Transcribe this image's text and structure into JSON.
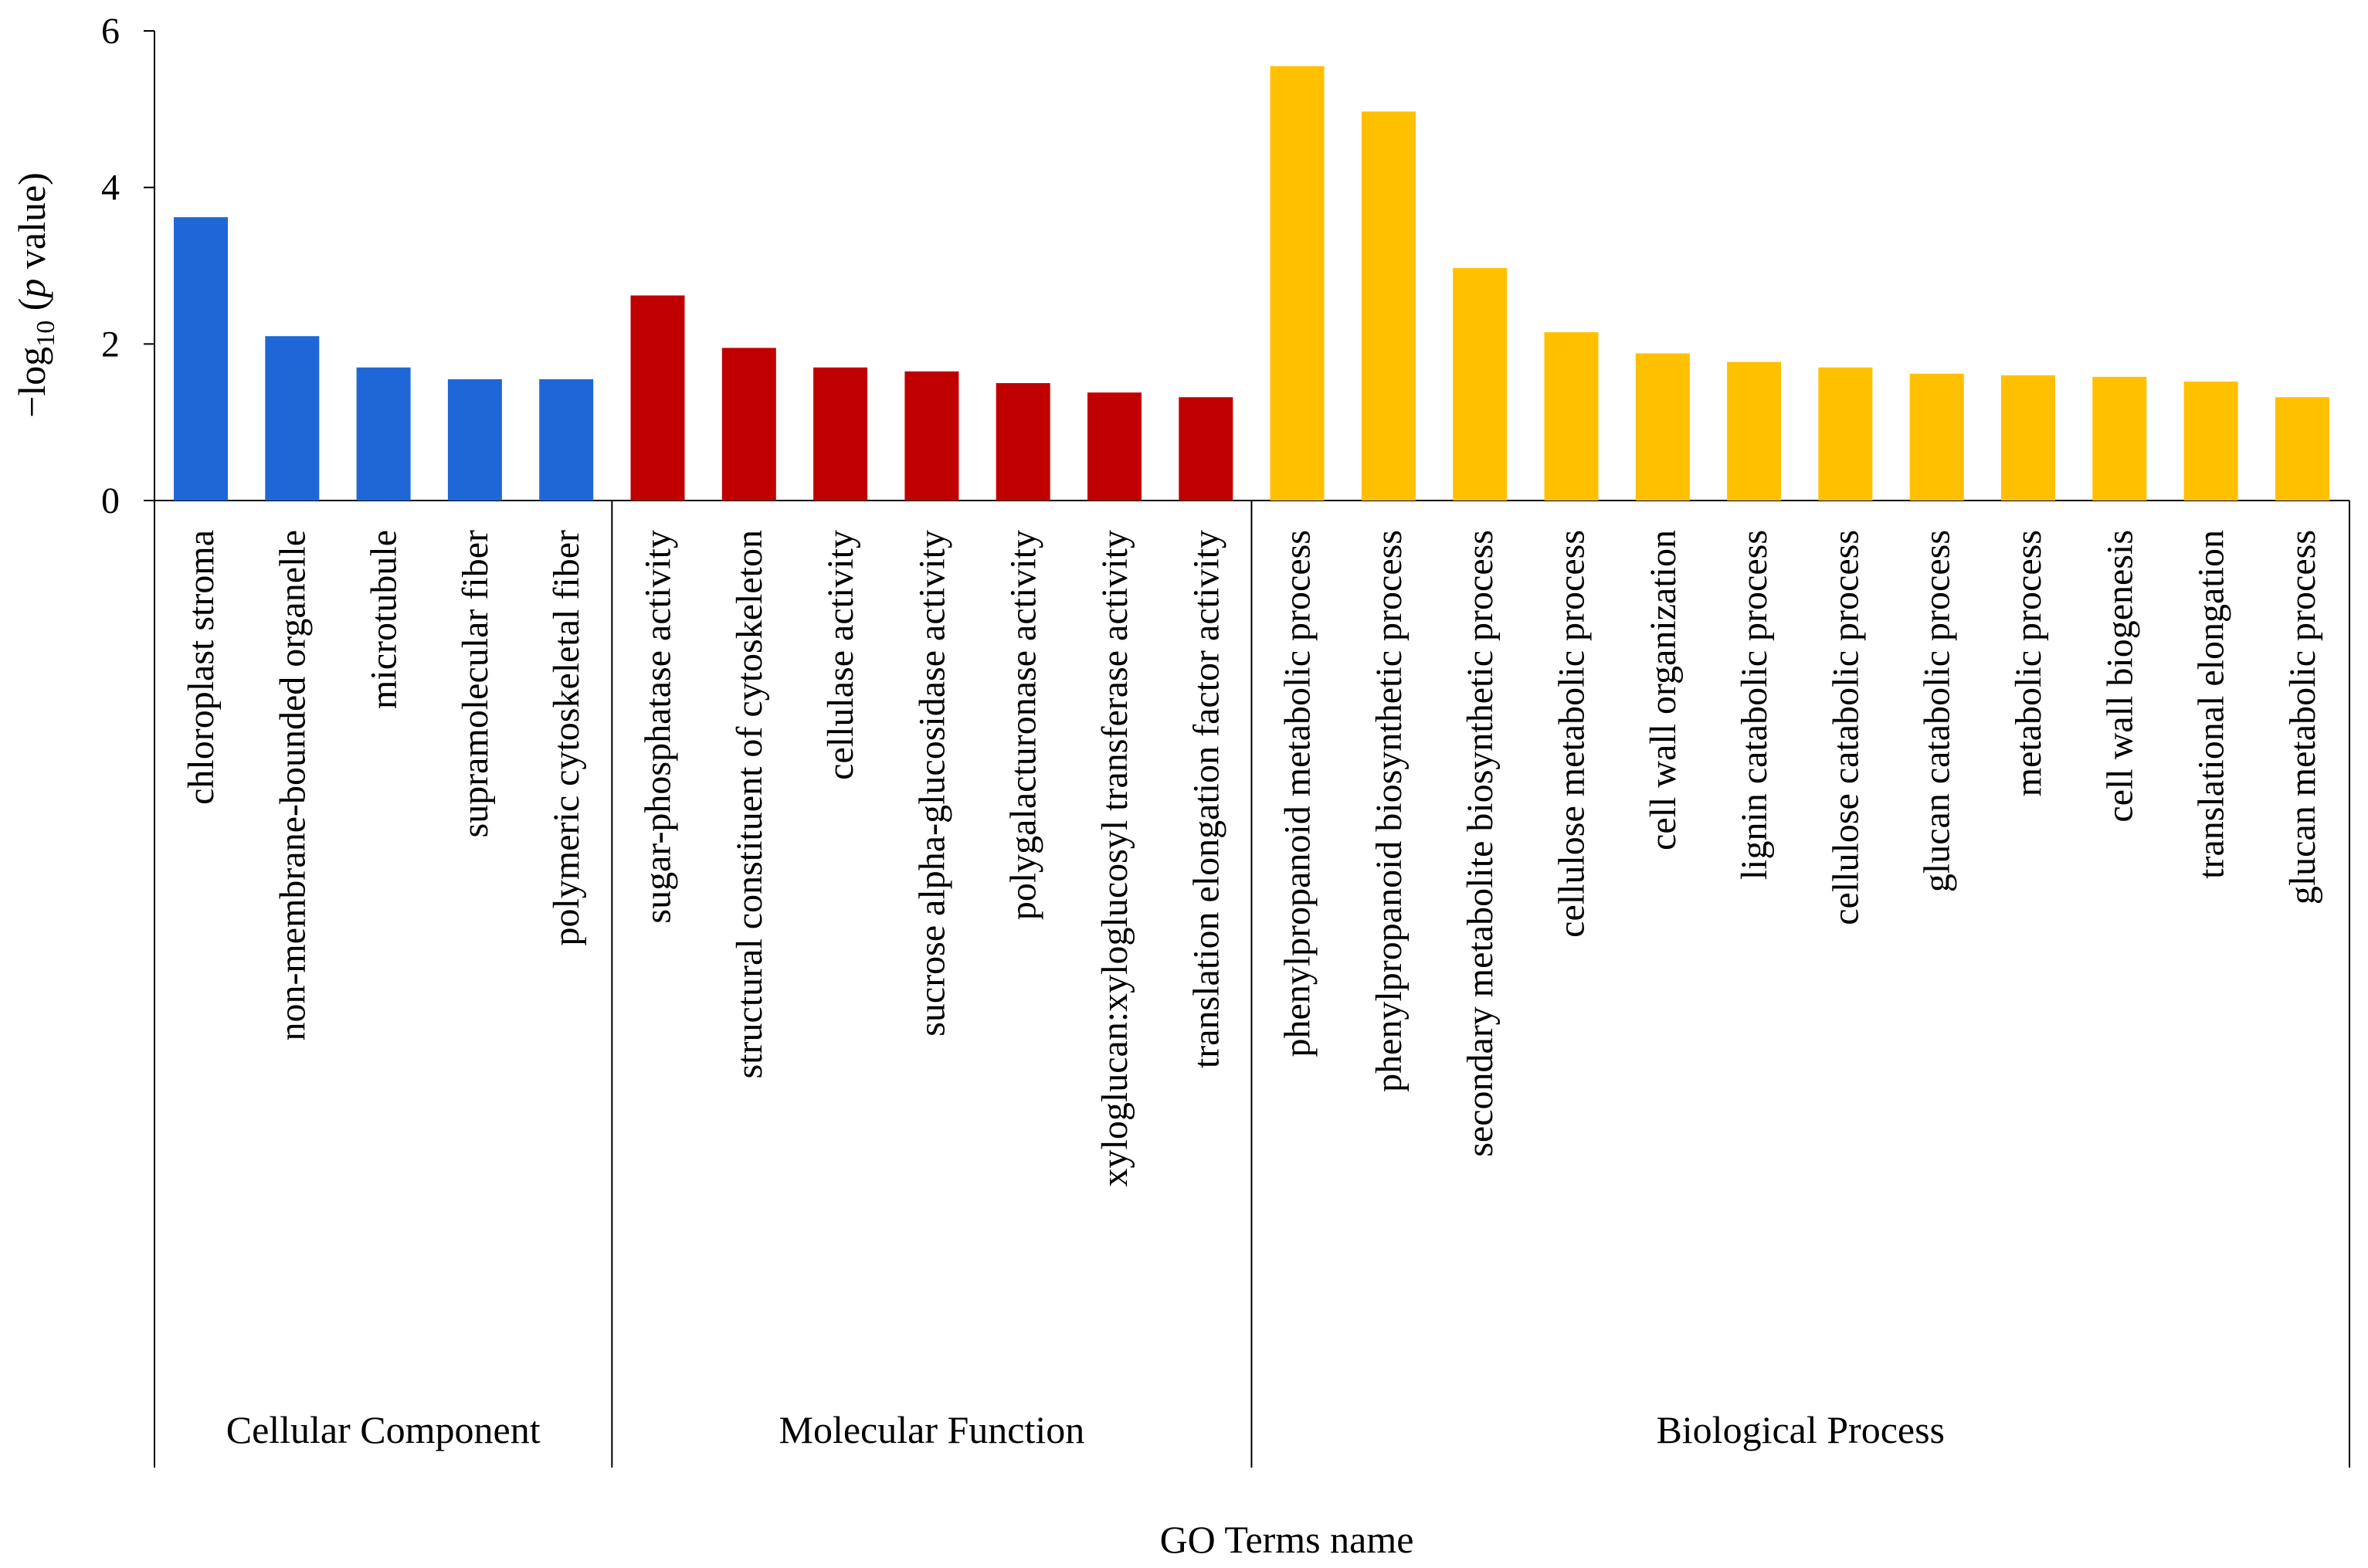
{
  "chart_data": {
    "type": "bar",
    "title": "",
    "xlabel": "GO Terms name",
    "ylabel_parts": [
      "−log",
      "10",
      " (",
      "p",
      " value)"
    ],
    "ylim": [
      0,
      6
    ],
    "yticks": [
      "0",
      "2",
      "4",
      "6"
    ],
    "groups": [
      {
        "name": "Cellular Component",
        "color": "#1f67d6",
        "start": 0,
        "count": 5
      },
      {
        "name": "Molecular Function",
        "color": "#c00000",
        "start": 5,
        "count": 7
      },
      {
        "name": "Biological Process",
        "color": "#ffc000",
        "start": 12,
        "count": 12
      }
    ],
    "categories": [
      "chloroplast stroma",
      "non-membrane-bounded organelle",
      "microtubule",
      "supramolecular fiber",
      "polymeric cytoskeletal fiber",
      "sugar-phosphatase activity",
      "structural constituent of cytoskeleton",
      "cellulase activity",
      "sucrose alpha-glucosidase activity",
      "polygalacturonase activity",
      "xyloglucan:xyloglucosyl transferase activity",
      "translation elongation factor activity",
      "phenylpropanoid metabolic process",
      "phenylpropanoid biosynthetic process",
      "secondary metabolite biosynthetic process",
      "cellulose metabolic process",
      "cell wall organization",
      "lignin catabolic process",
      "cellulose catabolic process",
      "glucan catabolic process",
      "metabolic process",
      "cell wall biogenesis",
      "translational elongation",
      "glucan metabolic process"
    ],
    "values": [
      3.62,
      2.1,
      1.7,
      1.55,
      1.55,
      2.62,
      1.95,
      1.7,
      1.65,
      1.5,
      1.38,
      1.32,
      5.55,
      4.97,
      2.97,
      2.15,
      1.88,
      1.77,
      1.7,
      1.62,
      1.6,
      1.58,
      1.52,
      1.32
    ]
  }
}
